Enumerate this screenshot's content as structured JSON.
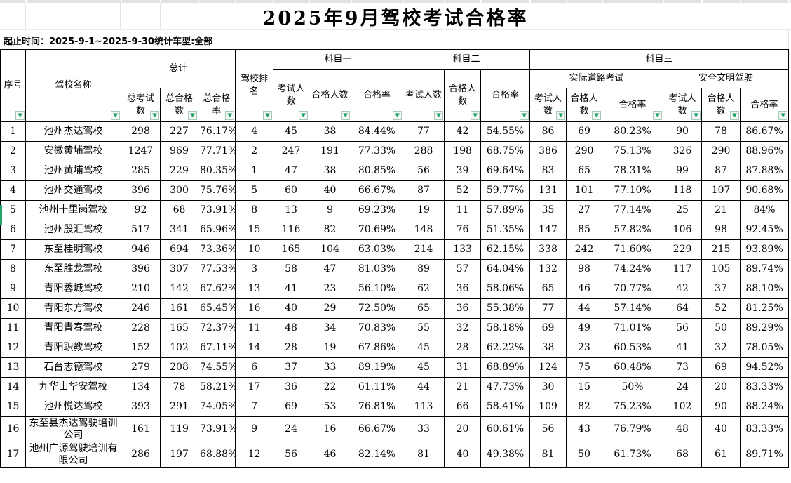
{
  "page": {
    "title": "2025年9月驾校考试合格率",
    "subtitle": "起止时间：2025-9-1~2025-9-30统计车型:全部"
  },
  "table": {
    "headers": {
      "seq": "序号",
      "school": "驾校名称",
      "total": "总计",
      "total_exam": "总考试数",
      "total_pass": "总合格数",
      "total_rate": "总合格率",
      "rank": "驾校排名",
      "s1": "科目一",
      "s2": "科目二",
      "s3": "科目三",
      "road": "实际道路考试",
      "civil": "安全文明驾驶",
      "exam": "考试人数",
      "pass": "合格人数",
      "rate": "合格率"
    },
    "rows": [
      [
        "1",
        "池州杰达驾校",
        "298",
        "227",
        "76.17%",
        "4",
        "45",
        "38",
        "84.44%",
        "77",
        "42",
        "54.55%",
        "86",
        "69",
        "80.23%",
        "90",
        "78",
        "86.67%"
      ],
      [
        "2",
        "安徽黄埔驾校",
        "1247",
        "969",
        "77.71%",
        "2",
        "247",
        "191",
        "77.33%",
        "288",
        "198",
        "68.75%",
        "386",
        "290",
        "75.13%",
        "326",
        "290",
        "88.96%"
      ],
      [
        "3",
        "池州黄埔驾校",
        "285",
        "229",
        "80.35%",
        "1",
        "47",
        "38",
        "80.85%",
        "56",
        "39",
        "69.64%",
        "83",
        "65",
        "78.31%",
        "99",
        "87",
        "87.88%"
      ],
      [
        "4",
        "池州交通驾校",
        "396",
        "300",
        "75.76%",
        "5",
        "60",
        "40",
        "66.67%",
        "87",
        "52",
        "59.77%",
        "131",
        "101",
        "77.10%",
        "118",
        "107",
        "90.68%"
      ],
      [
        "5",
        "池州十里岗驾校",
        "92",
        "68",
        "73.91%",
        "8",
        "13",
        "9",
        "69.23%",
        "19",
        "11",
        "57.89%",
        "35",
        "27",
        "77.14%",
        "25",
        "21",
        "84%"
      ],
      [
        "6",
        "池州殷汇驾校",
        "517",
        "341",
        "65.96%",
        "15",
        "116",
        "82",
        "70.69%",
        "148",
        "76",
        "51.35%",
        "147",
        "85",
        "57.82%",
        "106",
        "98",
        "92.45%"
      ],
      [
        "7",
        "东至桂明驾校",
        "946",
        "694",
        "73.36%",
        "10",
        "165",
        "104",
        "63.03%",
        "214",
        "133",
        "62.15%",
        "338",
        "242",
        "71.60%",
        "229",
        "215",
        "93.89%"
      ],
      [
        "8",
        "东至胜龙驾校",
        "396",
        "307",
        "77.53%",
        "3",
        "58",
        "47",
        "81.03%",
        "89",
        "57",
        "64.04%",
        "132",
        "98",
        "74.24%",
        "117",
        "105",
        "89.74%"
      ],
      [
        "9",
        "青阳蓉城驾校",
        "210",
        "142",
        "67.62%",
        "13",
        "41",
        "23",
        "56.10%",
        "62",
        "36",
        "58.06%",
        "65",
        "46",
        "70.77%",
        "42",
        "37",
        "88.10%"
      ],
      [
        "10",
        "青阳东方驾校",
        "246",
        "161",
        "65.45%",
        "16",
        "40",
        "29",
        "72.50%",
        "65",
        "36",
        "55.38%",
        "77",
        "44",
        "57.14%",
        "64",
        "52",
        "81.25%"
      ],
      [
        "11",
        "青阳青春驾校",
        "228",
        "165",
        "72.37%",
        "11",
        "48",
        "34",
        "70.83%",
        "55",
        "32",
        "58.18%",
        "69",
        "49",
        "71.01%",
        "56",
        "50",
        "89.29%"
      ],
      [
        "12",
        "青阳职教驾校",
        "152",
        "102",
        "67.11%",
        "14",
        "28",
        "19",
        "67.86%",
        "45",
        "28",
        "62.22%",
        "38",
        "23",
        "60.53%",
        "41",
        "32",
        "78.05%"
      ],
      [
        "13",
        "石台志德驾校",
        "279",
        "208",
        "74.55%",
        "6",
        "37",
        "33",
        "89.19%",
        "45",
        "31",
        "68.89%",
        "124",
        "75",
        "60.48%",
        "73",
        "69",
        "94.52%"
      ],
      [
        "14",
        "九华山华安驾校",
        "134",
        "78",
        "58.21%",
        "17",
        "36",
        "22",
        "61.11%",
        "44",
        "21",
        "47.73%",
        "30",
        "15",
        "50%",
        "24",
        "20",
        "83.33%"
      ],
      [
        "15",
        "池州悦达驾校",
        "393",
        "291",
        "74.05%",
        "7",
        "69",
        "53",
        "76.81%",
        "113",
        "66",
        "58.41%",
        "109",
        "82",
        "75.23%",
        "102",
        "90",
        "88.24%"
      ],
      [
        "16",
        "东至县杰达驾驶培训公司",
        "161",
        "119",
        "73.91%",
        "9",
        "24",
        "16",
        "66.67%",
        "33",
        "20",
        "60.61%",
        "56",
        "43",
        "76.79%",
        "48",
        "40",
        "83.33%"
      ],
      [
        "17",
        "池州广源驾驶培训有限公司",
        "286",
        "197",
        "68.88%",
        "12",
        "56",
        "46",
        "82.14%",
        "81",
        "40",
        "49.38%",
        "81",
        "50",
        "61.73%",
        "68",
        "61",
        "89.71%"
      ]
    ]
  },
  "selection": {
    "selected_row": "5"
  },
  "icons": {
    "filter_dropdown": "▼"
  },
  "colors": {
    "filter_green": "#1a9e64",
    "selection_green": "#21a366",
    "top_strip_gray": "#e2e2e2",
    "gridline_gray": "#e3e3e3",
    "table_border": "#000000"
  }
}
